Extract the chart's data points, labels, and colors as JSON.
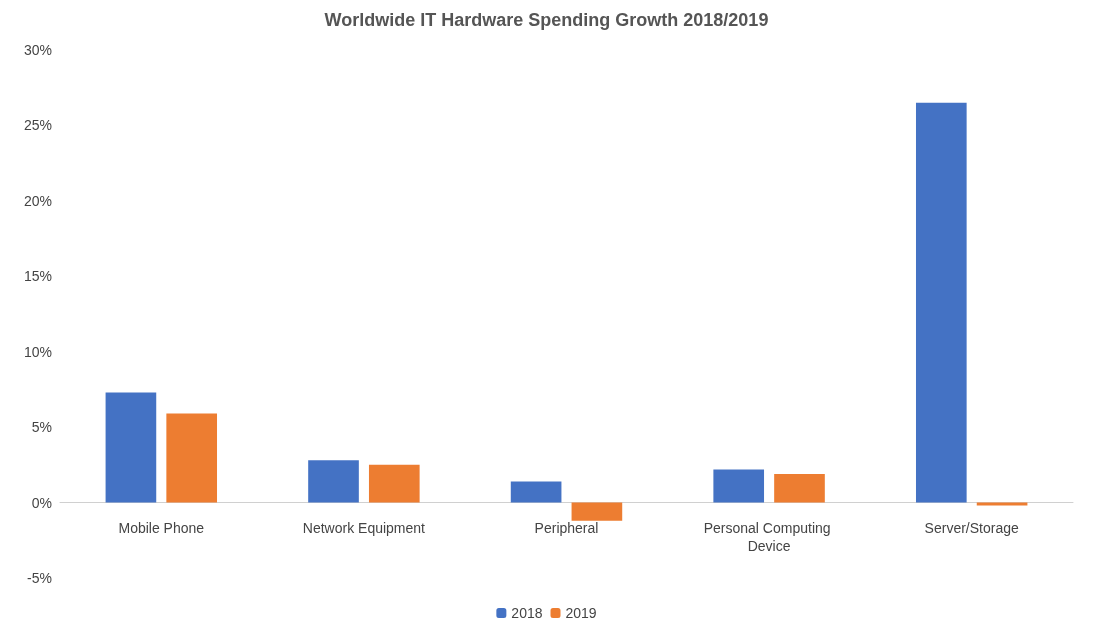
{
  "chart_data": {
    "type": "bar",
    "title": "Worldwide IT Hardware Spending Growth 2018/2019",
    "categories": [
      "Mobile Phone",
      "Network Equipment",
      "Peripheral",
      "Personal Computing Device",
      "Server/Storage"
    ],
    "series": [
      {
        "name": "2018",
        "color": "#4472c4",
        "values": [
          7.3,
          2.8,
          1.4,
          2.2,
          26.5
        ]
      },
      {
        "name": "2019",
        "color": "#ed7d31",
        "values": [
          5.9,
          2.5,
          -1.2,
          1.9,
          -0.2
        ]
      }
    ],
    "ylim": [
      -5,
      30
    ],
    "yticks": [
      {
        "value": -5,
        "label": "-5%"
      },
      {
        "value": 0,
        "label": "0%"
      },
      {
        "value": 5,
        "label": "5%"
      },
      {
        "value": 10,
        "label": "10%"
      },
      {
        "value": 15,
        "label": "15%"
      },
      {
        "value": 20,
        "label": "20%"
      },
      {
        "value": 25,
        "label": "25%"
      },
      {
        "value": 30,
        "label": "30%"
      }
    ],
    "grid": false,
    "legend": "bottom"
  }
}
